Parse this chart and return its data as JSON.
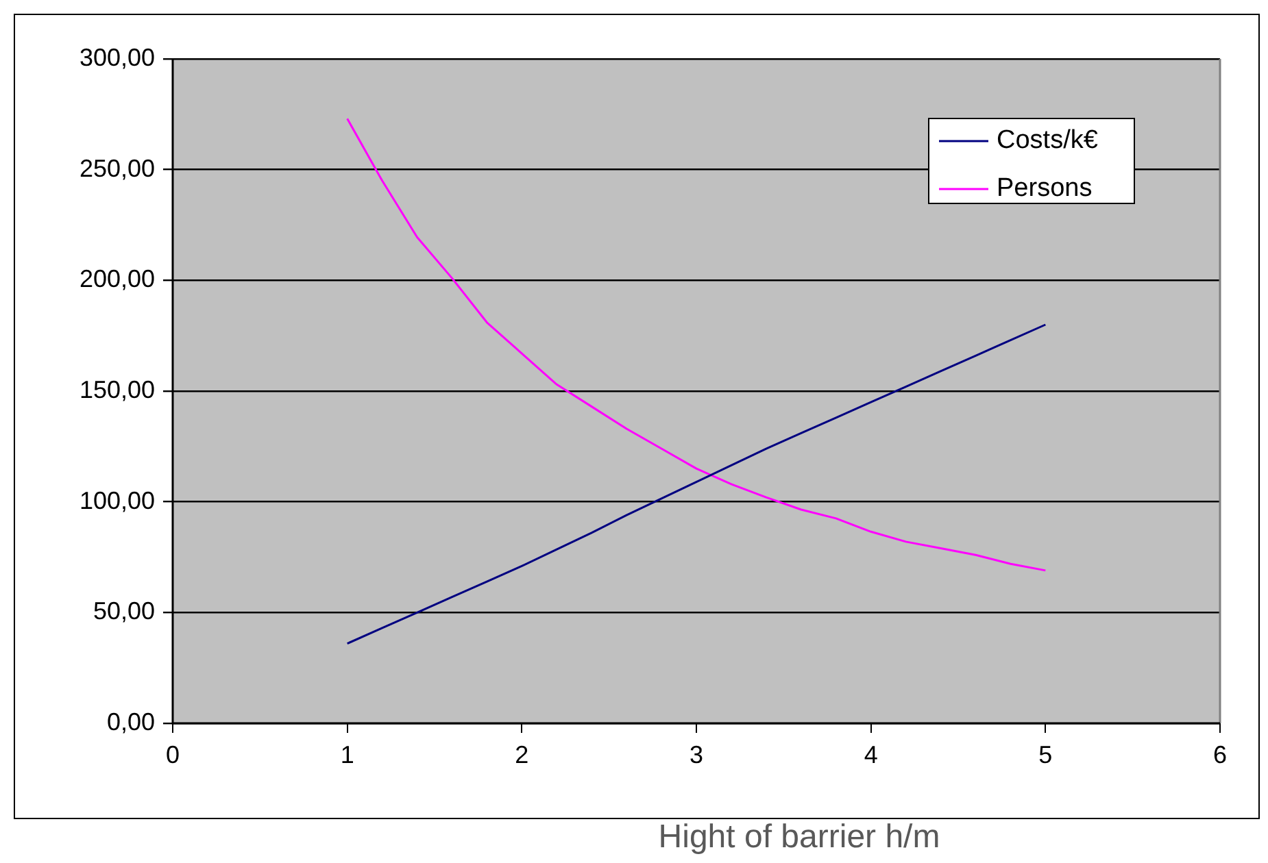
{
  "chart_data": {
    "type": "line",
    "xlabel": "Hight of barrier h/m",
    "xlim": [
      0,
      6
    ],
    "xticks": [
      0,
      1,
      2,
      3,
      4,
      5,
      6
    ],
    "ylim": [
      0,
      300
    ],
    "yticks": [
      {
        "value": 0,
        "label": "0,00"
      },
      {
        "value": 50,
        "label": "50,00"
      },
      {
        "value": 100,
        "label": "100,00"
      },
      {
        "value": 150,
        "label": "150,00"
      },
      {
        "value": 200,
        "label": "200,00"
      },
      {
        "value": 250,
        "label": "250,00"
      },
      {
        "value": 300,
        "label": "300,00"
      }
    ],
    "x": [
      1,
      1.2,
      1.4,
      1.6,
      1.8,
      2,
      2.2,
      2.4,
      2.6,
      2.8,
      3,
      3.2,
      3.4,
      3.6,
      3.8,
      4,
      4.2,
      4.4,
      4.6,
      4.8,
      5
    ],
    "series": [
      {
        "name": "Costs/k€",
        "color": "#000080",
        "values": [
          36,
          43,
          50,
          57,
          64,
          71,
          78.5,
          86,
          94,
          101.5,
          109,
          116.5,
          124,
          131,
          138,
          145,
          152,
          159,
          166,
          173,
          180
        ]
      },
      {
        "name": "Persons",
        "color": "#ff00ff",
        "values": [
          273,
          245,
          219.5,
          201,
          181,
          167,
          153,
          143,
          133,
          124,
          115,
          108,
          102,
          96.5,
          92.5,
          86.5,
          82,
          79,
          76,
          72,
          69
        ]
      }
    ],
    "grid": "y",
    "legend": "top right",
    "marker": "none",
    "line_style": "solid"
  }
}
